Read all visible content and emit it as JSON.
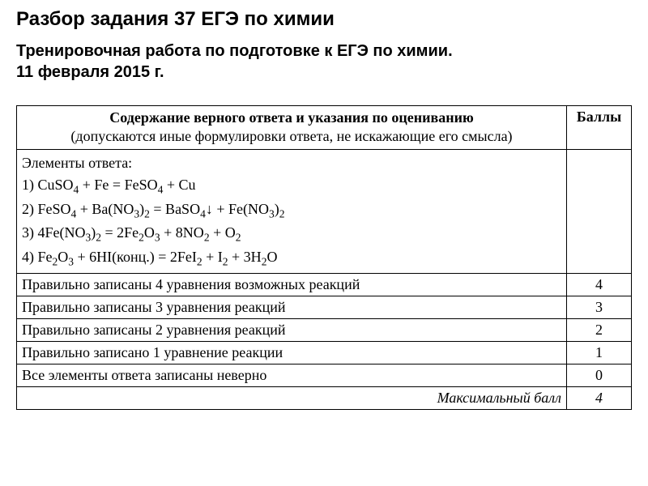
{
  "title": "Разбор задания 37 ЕГЭ по химии",
  "subtitle_line1": "Тренировочная работа по подготовке к ЕГЭ по химии.",
  "subtitle_line2": "11 февраля 2015 г.",
  "table": {
    "header": {
      "left_bold": "Содержание верного ответа и указания по оцениванию",
      "left_note": "(допускаются иные формулировки ответа, не искажающие его смысла)",
      "right": "Баллы"
    },
    "answer_intro": "Элементы ответа:",
    "equations": [
      {
        "prefix": "1) ",
        "formula": "CuSO₄ + Fe = FeSO₄ + Cu"
      },
      {
        "prefix": "2) ",
        "formula": "FeSO₄ + Ba(NO₃)₂ = BaSO₄↓ + Fe(NO₃)₂"
      },
      {
        "prefix": "3) ",
        "formula": "4Fe(NO₃)₂ = 2Fe₂O₃ + 8NO₂ + O₂"
      },
      {
        "prefix": "4) ",
        "formula": "Fe₂O₃ + 6HI(конц.) = 2FeI₂ + I₂ + 3H₂O"
      }
    ],
    "scoring_rows": [
      {
        "text": "Правильно записаны 4 уравнения возможных реакций",
        "score": "4"
      },
      {
        "text": "Правильно записаны 3 уравнения реакций",
        "score": "3"
      },
      {
        "text": "Правильно записаны 2 уравнения реакций",
        "score": "2"
      },
      {
        "text": "Правильно записано 1 уравнение реакции",
        "score": "1"
      },
      {
        "text": "Все элементы ответа записаны неверно",
        "score": "0"
      }
    ],
    "max_row": {
      "label": "Максимальный балл",
      "score": "4"
    }
  },
  "colors": {
    "text": "#000000",
    "background": "#ffffff",
    "border": "#000000"
  },
  "fonts": {
    "heading_family": "Arial, sans-serif",
    "body_family": "Times New Roman, Times, serif",
    "title_size": 24,
    "subtitle_size": 20,
    "table_size": 18
  }
}
